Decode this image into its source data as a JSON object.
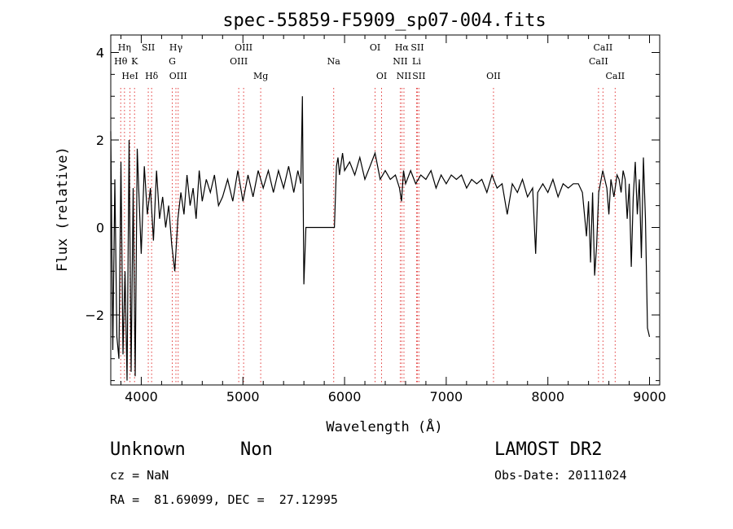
{
  "chart_data": {
    "type": "line",
    "title": "spec-55859-F5909_sp07-004.fits",
    "xlabel": "Wavelength (Å)",
    "ylabel": "Flux (relative)",
    "xlim": [
      3700,
      9100
    ],
    "ylim": [
      -3.6,
      4.4
    ],
    "xticks": [
      4000,
      5000,
      6000,
      7000,
      8000,
      9000
    ],
    "yticks": [
      -2,
      0,
      2,
      4
    ],
    "grid": false,
    "series": [
      {
        "color": "#000000",
        "x": [
          3700,
          3720,
          3740,
          3760,
          3780,
          3800,
          3820,
          3840,
          3860,
          3880,
          3900,
          3920,
          3940,
          3960,
          3980,
          4000,
          4030,
          4060,
          4090,
          4120,
          4150,
          4180,
          4210,
          4240,
          4270,
          4300,
          4330,
          4360,
          4390,
          4420,
          4450,
          4480,
          4510,
          4540,
          4570,
          4600,
          4640,
          4680,
          4720,
          4760,
          4800,
          4850,
          4900,
          4950,
          5000,
          5050,
          5100,
          5150,
          5200,
          5250,
          5300,
          5350,
          5400,
          5450,
          5500,
          5540,
          5570,
          5585,
          5600,
          5620,
          5700,
          5800,
          5900,
          5920,
          5935,
          5950,
          5980,
          6000,
          6050,
          6100,
          6150,
          6200,
          6250,
          6300,
          6350,
          6400,
          6450,
          6500,
          6540,
          6560,
          6580,
          6600,
          6650,
          6700,
          6750,
          6800,
          6850,
          6900,
          6950,
          7000,
          7050,
          7100,
          7150,
          7200,
          7250,
          7300,
          7350,
          7400,
          7450,
          7500,
          7550,
          7600,
          7650,
          7700,
          7750,
          7800,
          7850,
          7880,
          7900,
          7950,
          8000,
          8050,
          8100,
          8150,
          8200,
          8250,
          8300,
          8340,
          8360,
          8380,
          8400,
          8420,
          8440,
          8460,
          8480,
          8500,
          8540,
          8580,
          8600,
          8620,
          8650,
          8680,
          8700,
          8720,
          8740,
          8760,
          8780,
          8800,
          8820,
          8840,
          8860,
          8880,
          8900,
          8920,
          8940,
          8960,
          8980,
          9000
        ],
        "y": [
          2.2,
          -2.8,
          1.1,
          -2.5,
          -3.0,
          1.5,
          -2.9,
          -1.0,
          -3.5,
          2.0,
          -3.3,
          0.9,
          -3.4,
          1.8,
          0.6,
          -0.6,
          1.4,
          0.3,
          0.9,
          -0.3,
          1.3,
          0.2,
          0.7,
          0.0,
          0.5,
          -0.4,
          -1.0,
          0.2,
          0.8,
          0.3,
          1.2,
          0.5,
          0.9,
          0.2,
          1.3,
          0.6,
          1.1,
          0.8,
          1.2,
          0.5,
          0.7,
          1.1,
          0.6,
          1.3,
          0.6,
          1.2,
          0.7,
          1.3,
          0.9,
          1.3,
          0.8,
          1.3,
          0.9,
          1.4,
          0.8,
          1.3,
          1.0,
          3.0,
          -1.3,
          0.0,
          0.0,
          0.0,
          0.0,
          1.4,
          1.6,
          1.2,
          1.7,
          1.3,
          1.5,
          1.2,
          1.6,
          1.1,
          1.4,
          1.7,
          1.1,
          1.3,
          1.1,
          1.2,
          0.9,
          0.6,
          1.3,
          1.0,
          1.3,
          1.0,
          1.2,
          1.1,
          1.3,
          0.9,
          1.2,
          1.0,
          1.2,
          1.1,
          1.2,
          0.9,
          1.1,
          1.0,
          1.1,
          0.8,
          1.2,
          0.9,
          1.0,
          0.3,
          1.0,
          0.8,
          1.1,
          0.7,
          0.9,
          -0.6,
          0.8,
          1.0,
          0.8,
          1.1,
          0.7,
          1.0,
          0.9,
          1.0,
          1.0,
          0.8,
          0.3,
          -0.2,
          0.6,
          -0.8,
          0.8,
          -1.1,
          -0.4,
          0.8,
          1.3,
          0.9,
          0.3,
          1.1,
          0.7,
          1.2,
          1.1,
          0.8,
          1.3,
          1.1,
          0.2,
          1.0,
          -0.9,
          0.7,
          1.5,
          0.3,
          1.1,
          -0.7,
          1.6,
          0.2,
          -2.3,
          -2.5
        ]
      }
    ],
    "line_markers": [
      {
        "label": "Hη",
        "x": 3835,
        "row": 0
      },
      {
        "label": "Hθ",
        "x": 3798,
        "row": 1
      },
      {
        "label": "K",
        "x": 3934,
        "row": 1
      },
      {
        "label": "HeI",
        "x": 3889,
        "row": 2
      },
      {
        "label": "SII",
        "x": 4069,
        "row": 0
      },
      {
        "label": "Hδ",
        "x": 4102,
        "row": 2
      },
      {
        "label": "Hγ",
        "x": 4341,
        "row": 0
      },
      {
        "label": "G",
        "x": 4305,
        "row": 1
      },
      {
        "label": "OIII",
        "x": 4363,
        "row": 2
      },
      {
        "label": "OIII",
        "x": 5007,
        "row": 0
      },
      {
        "label": "OIII",
        "x": 4959,
        "row": 1
      },
      {
        "label": "Mg",
        "x": 5175,
        "row": 2
      },
      {
        "label": "Na",
        "x": 5893,
        "row": 1
      },
      {
        "label": "OI",
        "x": 6300,
        "row": 0
      },
      {
        "label": "OI",
        "x": 6364,
        "row": 2
      },
      {
        "label": "Hα",
        "x": 6563,
        "row": 0
      },
      {
        "label": "SII",
        "x": 6716,
        "row": 0
      },
      {
        "label": "NII",
        "x": 6548,
        "row": 1
      },
      {
        "label": "Li",
        "x": 6708,
        "row": 1
      },
      {
        "label": "NII",
        "x": 6584,
        "row": 2
      },
      {
        "label": "SII",
        "x": 6731,
        "row": 2
      },
      {
        "label": "OII",
        "x": 7465,
        "row": 2
      },
      {
        "label": "CaII",
        "x": 8542,
        "row": 0
      },
      {
        "label": "CaII",
        "x": 8498,
        "row": 1
      },
      {
        "label": "CaII",
        "x": 8662,
        "row": 2
      }
    ],
    "marker_line_color": "#e23a3a"
  },
  "info": {
    "class_label": "Unknown",
    "subclass_label": "Non",
    "survey": "LAMOST DR2",
    "cz": "cz = NaN",
    "obs_date": "Obs-Date: 20111024",
    "coords": "RA =  81.69099, DEC =  27.12995"
  }
}
